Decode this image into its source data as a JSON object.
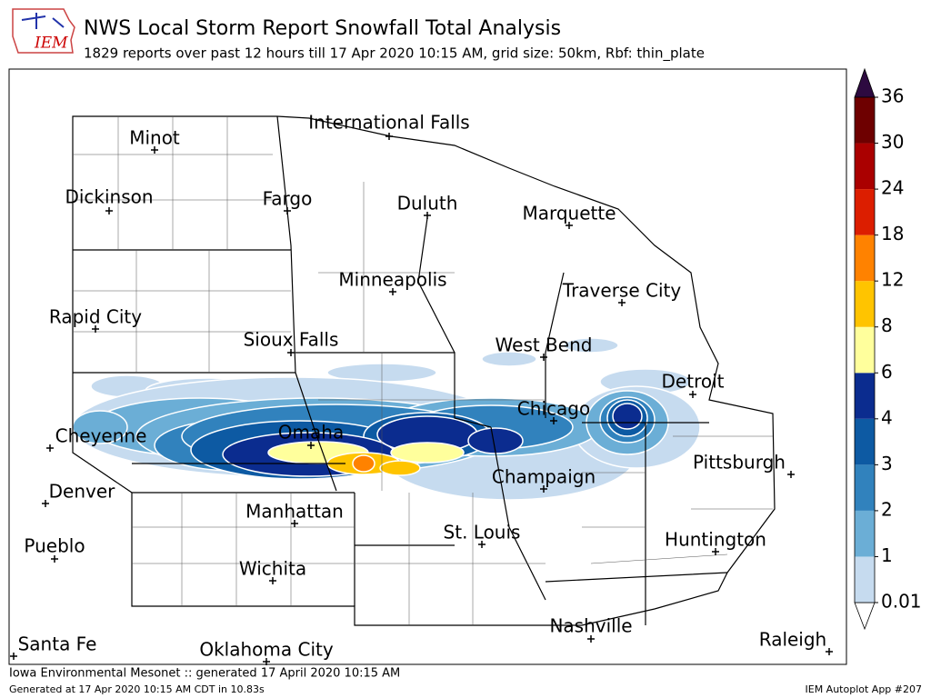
{
  "header": {
    "title": "NWS Local Storm Report Snowfall Total Analysis",
    "subtitle": "1829 reports over past 12 hours till 17 Apr 2020 10:15 AM, grid size: 50km, Rbf: thin_plate",
    "logo": "IEM"
  },
  "cities": [
    "Minot",
    "International Falls",
    "Dickinson",
    "Fargo",
    "Duluth",
    "Marquette",
    "Minneapolis",
    "Traverse City",
    "Rapid City",
    "Sioux Falls",
    "West Bend",
    "Detroit",
    "Chicago",
    "Cheyenne",
    "Omaha",
    "Pittsburgh",
    "Champaign",
    "Denver",
    "Manhattan",
    "St. Louis",
    "Huntington",
    "Pueblo",
    "Wichita",
    "Nashville",
    "Raleigh",
    "Santa Fe",
    "Oklahoma City"
  ],
  "colorbar": {
    "levels": [
      0.01,
      1,
      2,
      3,
      4,
      6,
      8,
      12,
      18,
      24,
      30,
      36
    ],
    "colors": [
      "#c6dbef",
      "#6baed6",
      "#3182bd",
      "#0d5aa3",
      "#0b2c8f",
      "#ffff9c",
      "#ffc400",
      "#ff8200",
      "#dc1e00",
      "#aa0000",
      "#6e0000"
    ],
    "under_color": "#ffffff",
    "over_color": "#2d0a40"
  },
  "footer": {
    "left": "Iowa Environmental Mesonet :: generated 17 April 2020 10:15 AM",
    "left_small": "Generated at 17 Apr 2020 10:15 AM CDT in 10.83s",
    "right": "IEM Autoplot App #207"
  }
}
